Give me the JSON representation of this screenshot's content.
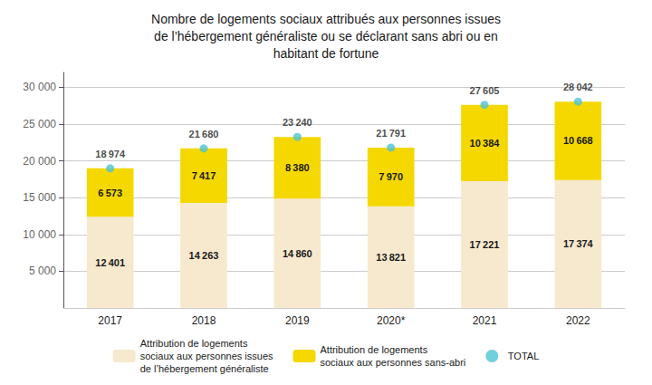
{
  "chart_data": {
    "type": "bar",
    "title": "Nombre de logements sociaux attribués aux personnes issues\nde l’hébergement généraliste ou se déclarant sans abri ou en\nhabitant de fortune",
    "categories": [
      "2017",
      "2018",
      "2019",
      "2020*",
      "2021",
      "2022"
    ],
    "stacked": true,
    "data_labels": true,
    "grid": true,
    "legend": "bottom",
    "ylim": [
      0,
      32000
    ],
    "yticks": [
      {
        "value": 5000,
        "label": "5 000"
      },
      {
        "value": 10000,
        "label": "10 000"
      },
      {
        "value": 15000,
        "label": "15 000"
      },
      {
        "value": 20000,
        "label": "20 000"
      },
      {
        "value": 25000,
        "label": "25 000"
      },
      {
        "value": 30000,
        "label": "30 000"
      }
    ],
    "series": [
      {
        "name": "Attribution de logements\nsociaux aux personnes issues\nde l’hébergement généraliste",
        "type": "bar",
        "color": "#f7e9ce",
        "values": [
          12401,
          14263,
          14860,
          13821,
          17221,
          17374
        ],
        "value_labels": [
          "12 401",
          "14 263",
          "14 860",
          "13 821",
          "17 221",
          "17 374"
        ]
      },
      {
        "name": "Attribution de logements\nsociaux aux personnes sans-abri",
        "type": "bar",
        "color": "#f5d800",
        "values": [
          6573,
          7417,
          8380,
          7970,
          10384,
          10668
        ],
        "value_labels": [
          "6 573",
          "7 417",
          "8 380",
          "7 970",
          "10 384",
          "10 668"
        ]
      },
      {
        "name": "TOTAL",
        "type": "scatter",
        "color": "#4fc3d4",
        "marker": "circle",
        "values": [
          18974,
          21680,
          23240,
          21791,
          27605,
          28042
        ],
        "value_labels": [
          "18 974",
          "21 680",
          "23 240",
          "21 791",
          "27 605",
          "28 042"
        ]
      }
    ]
  }
}
